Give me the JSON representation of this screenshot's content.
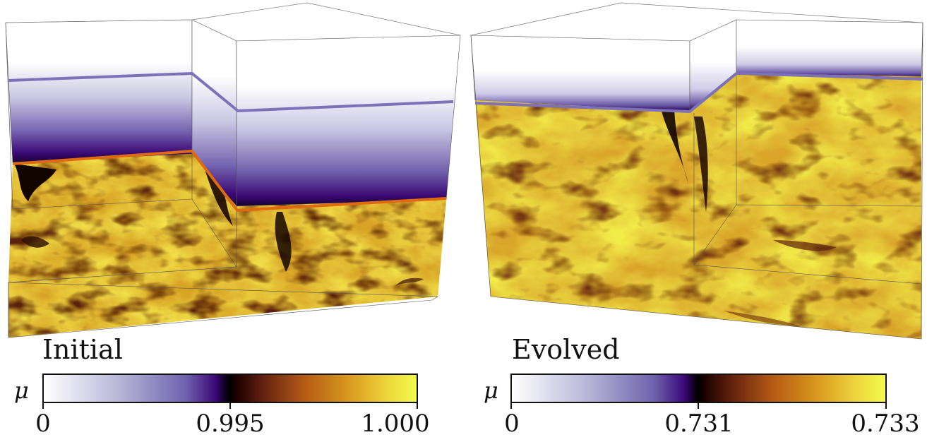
{
  "panels": [
    {
      "title": "Initial",
      "colorbar": {
        "symbol": "μ",
        "ticks": [
          "0",
          "0.995",
          "1.000"
        ],
        "colormap_stops": [
          "#ffffff",
          "#6f63ad",
          "#3b0a7a",
          "#000000",
          "#b55b14",
          "#f2fb4c"
        ]
      }
    },
    {
      "title": "Evolved",
      "colorbar": {
        "symbol": "μ",
        "ticks": [
          "0",
          "0.731",
          "0.733"
        ],
        "colormap_stops": [
          "#ffffff",
          "#6f63ad",
          "#3b0a7a",
          "#000000",
          "#b55b14",
          "#f2fb4c"
        ]
      }
    }
  ],
  "colors": {
    "upper_interface_line": "#7d72b8",
    "lower_interface_line": "#e06a10",
    "fluid_base": "#d7a325",
    "fluid_bright": "#f0e040",
    "fluid_dark": "#8a4a12"
  }
}
